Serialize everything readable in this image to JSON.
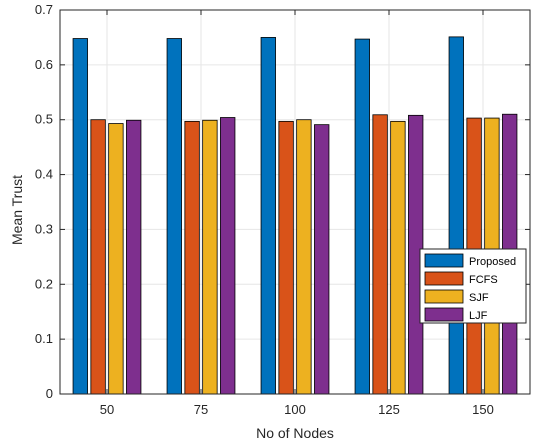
{
  "chart_data": {
    "type": "bar",
    "xlabel": "No of Nodes",
    "ylabel": "Mean Trust",
    "categories": [
      "50",
      "75",
      "100",
      "125",
      "150"
    ],
    "ylim": [
      0,
      0.7
    ],
    "yticks": [
      0,
      0.1,
      0.2,
      0.3,
      0.4,
      0.5,
      0.6,
      0.7
    ],
    "grid": true,
    "legend_position": "lower-right",
    "series": [
      {
        "name": "Proposed",
        "color": "#0072BD",
        "values": [
          0.648,
          0.648,
          0.65,
          0.647,
          0.651
        ]
      },
      {
        "name": "FCFS",
        "color": "#D95319",
        "values": [
          0.5,
          0.497,
          0.497,
          0.509,
          0.503
        ]
      },
      {
        "name": "SJF",
        "color": "#EDB120",
        "values": [
          0.493,
          0.499,
          0.5,
          0.497,
          0.503
        ]
      },
      {
        "name": "LJF",
        "color": "#7E2F8E",
        "values": [
          0.499,
          0.504,
          0.491,
          0.508,
          0.51
        ]
      }
    ]
  }
}
